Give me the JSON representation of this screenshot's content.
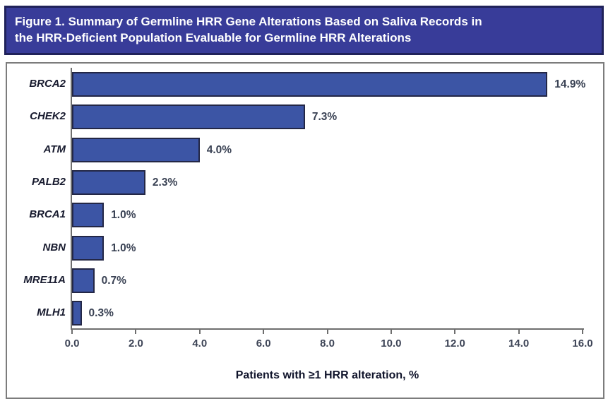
{
  "header": {
    "title_lines": [
      "Figure 1. Summary of Germline HRR Gene Alterations Based on Saliva Records in",
      "the HRR-Deficient Population Evaluable for Germline HRR Alterations"
    ]
  },
  "chart_data": {
    "type": "bar",
    "orientation": "horizontal",
    "categories": [
      "BRCA2",
      "CHEK2",
      "ATM",
      "PALB2",
      "BRCA1",
      "NBN",
      "MRE11A",
      "MLH1"
    ],
    "values": [
      14.9,
      7.3,
      4.0,
      2.3,
      1.0,
      1.0,
      0.7,
      0.3
    ],
    "value_labels": [
      "14.9%",
      "7.3%",
      "4.0%",
      "2.3%",
      "1.0%",
      "1.0%",
      "0.7%",
      "0.3%"
    ],
    "xlabel": "Patients with ≥1 HRR alteration, %",
    "xlim": [
      0,
      16
    ],
    "xticks": [
      0,
      2,
      4,
      6,
      8,
      10,
      12,
      14,
      16
    ],
    "xtick_labels": [
      "0.0",
      "2.0",
      "4.0",
      "6.0",
      "8.0",
      "10.0",
      "12.0",
      "14.0",
      "16.0"
    ],
    "grid": false,
    "legend": "none"
  },
  "colors": {
    "header_bg": "#383C99",
    "header_border": "#20225A",
    "header_text": "#FFFFFF",
    "panel_border": "#7C7C7C",
    "bar_fill": "#3C55A5",
    "bar_border": "#232746",
    "axis_line": "#6E6E6E",
    "tick_label": "#3D4456",
    "value_label": "#3A4254",
    "gene_label": "#171A2E",
    "axis_title": "#10142B"
  }
}
